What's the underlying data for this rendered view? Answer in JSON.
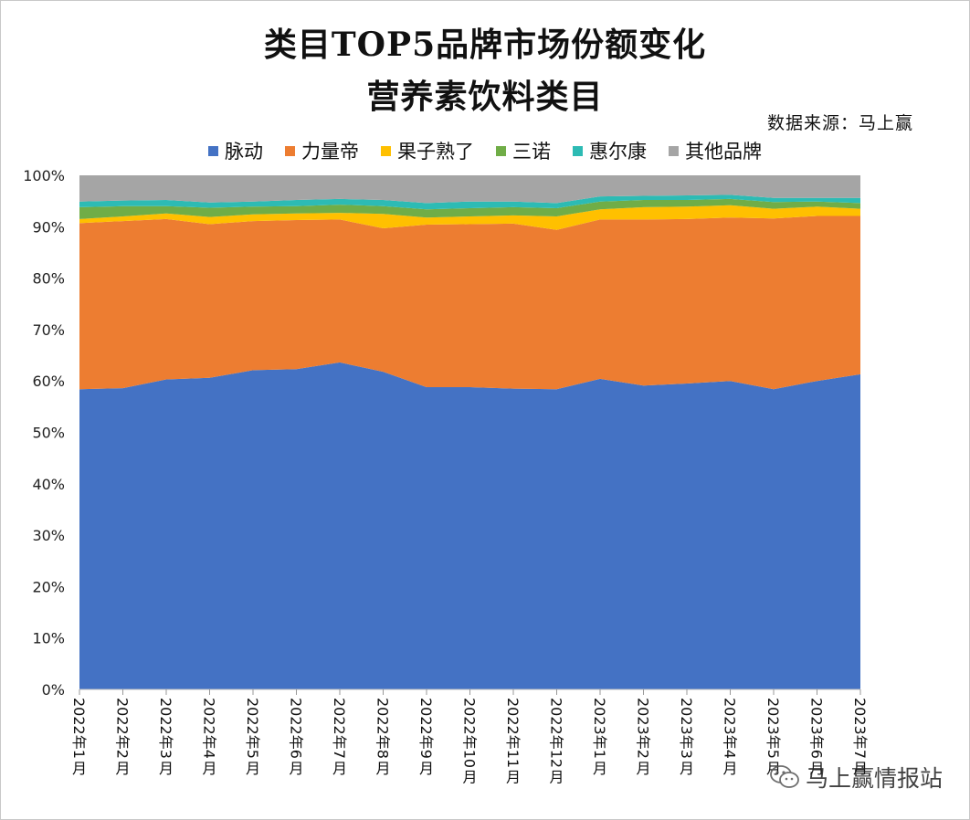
{
  "chart_data": {
    "type": "area",
    "stacked": true,
    "normalized": true,
    "title": "类目TOP5品牌市场份额变化",
    "subtitle": "营养素饮料类目",
    "source": "数据来源：马上赢",
    "legend_position": "top",
    "ylim": [
      0,
      100
    ],
    "y_ticks": [
      "0%",
      "10%",
      "20%",
      "30%",
      "40%",
      "50%",
      "60%",
      "70%",
      "80%",
      "90%",
      "100%"
    ],
    "categories": [
      "2022年1月",
      "2022年2月",
      "2022年3月",
      "2022年4月",
      "2022年5月",
      "2022年6月",
      "2022年7月",
      "2022年8月",
      "2022年9月",
      "2022年10月",
      "2022年11月",
      "2022年12月",
      "2023年1月",
      "2023年2月",
      "2023年3月",
      "2023年4月",
      "2023年5月",
      "2023年6月",
      "2023年7月"
    ],
    "series": [
      {
        "name": "脉动",
        "color": "#4472C4",
        "values": [
          58.4,
          58.6,
          60.3,
          60.6,
          62.1,
          62.3,
          63.6,
          61.8,
          58.8,
          58.8,
          58.5,
          58.4,
          60.4,
          59.1,
          59.5,
          60.0,
          58.4,
          60.0,
          61.3
        ]
      },
      {
        "name": "力量帝",
        "color": "#ED7D31",
        "values": [
          32.3,
          32.5,
          31.2,
          29.9,
          29.0,
          29.0,
          27.8,
          27.9,
          31.6,
          31.7,
          32.1,
          31.0,
          31.0,
          32.3,
          32.0,
          31.8,
          33.2,
          32.1,
          30.8
        ]
      },
      {
        "name": "果子熟了",
        "color": "#FFC000",
        "values": [
          0.8,
          0.9,
          1.1,
          1.4,
          1.3,
          1.3,
          1.3,
          2.8,
          1.4,
          1.5,
          1.6,
          2.6,
          2.0,
          2.4,
          2.4,
          2.4,
          1.9,
          1.8,
          1.4
        ]
      },
      {
        "name": "三诺",
        "color": "#70AD47",
        "values": [
          2.3,
          2.0,
          1.4,
          1.8,
          1.5,
          1.4,
          1.6,
          1.5,
          1.6,
          1.6,
          1.6,
          1.6,
          1.5,
          1.4,
          1.3,
          1.2,
          1.3,
          1.0,
          1.1
        ]
      },
      {
        "name": "惠尔康",
        "color": "#2DBBB4",
        "values": [
          1.1,
          1.1,
          1.2,
          1.0,
          1.0,
          1.2,
          1.1,
          1.2,
          1.2,
          1.3,
          1.1,
          1.0,
          1.0,
          0.8,
          0.9,
          0.8,
          0.8,
          0.7,
          1.0
        ]
      },
      {
        "name": "其他品牌",
        "color": "#A5A5A5",
        "values": [
          5.1,
          4.9,
          4.8,
          5.3,
          5.1,
          4.8,
          4.6,
          4.8,
          5.4,
          5.1,
          5.1,
          5.4,
          4.1,
          4.0,
          3.9,
          3.8,
          4.4,
          4.4,
          4.4
        ]
      }
    ]
  },
  "watermark": {
    "text": "马上赢情报站",
    "icon": "wechat-icon"
  }
}
